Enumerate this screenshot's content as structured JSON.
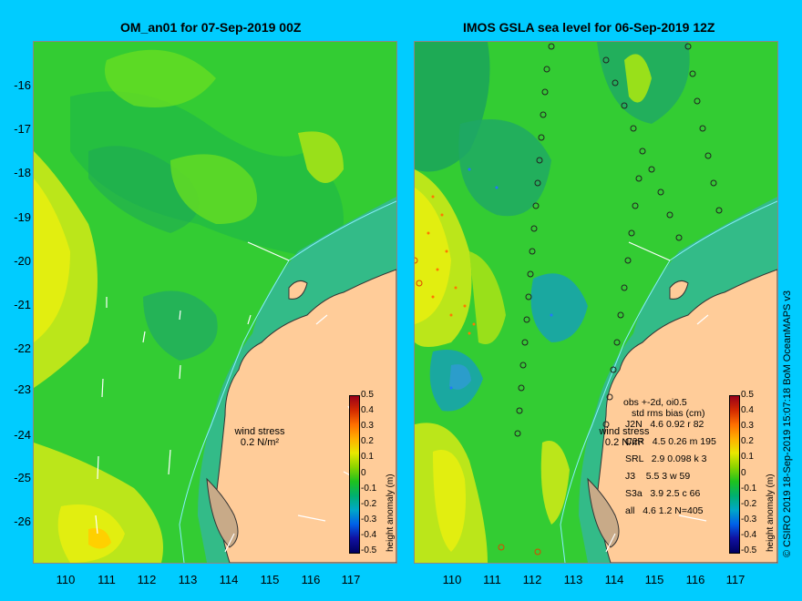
{
  "left_panel": {
    "title": "OM_an01 for 07-Sep-2019 00Z",
    "wind_label": "wind stress",
    "wind_value": "0.2 N/m²"
  },
  "right_panel": {
    "title": "IMOS GSLA sea level  for 06-Sep-2019 12Z",
    "wind_label": "wind stress",
    "wind_value": "0.2 N/m²",
    "stats_header": "obs +-2d, oi0.5",
    "stats_header2": "std rms bias (cm)",
    "stats_rows": [
      "J2N   4.6 0.92 r 82",
      "C2R   4.5 0.26 m 195",
      "SRL   2.9 0.098 k 3",
      "J3    5.5 3 w 59",
      "S3a   3.9 2.5 c 66",
      "all   4.6 1.2 N=405"
    ]
  },
  "y_ticks": [
    "-16",
    "-17",
    "-18",
    "-19",
    "-20",
    "-21",
    "-22",
    "-23",
    "-24",
    "-25",
    "-26"
  ],
  "x_ticks": [
    "110",
    "111",
    "112",
    "113",
    "114",
    "115",
    "116",
    "117"
  ],
  "colorbar": {
    "label": "height anomaly (m)",
    "ticks": [
      "0.5",
      "0.4",
      "0.3",
      "0.2",
      "0.1",
      "0",
      "-0.1",
      "-0.2",
      "-0.3",
      "-0.4",
      "-0.5"
    ],
    "colors": [
      "#99001a",
      "#d42a00",
      "#ff6f00",
      "#ffb000",
      "#e8e800",
      "#8ad400",
      "#1ec21e",
      "#00b070",
      "#00a8c8",
      "#0060e8",
      "#1010a0",
      "#000060"
    ]
  },
  "copyright": "© CSIRO 2019   18-Sep-2019 15:07:18 BoM OceanMAPS v3",
  "colors": {
    "background": "#00ccff",
    "land": "#ffcc99",
    "ocean_green": "#33cc33",
    "shelf": "#33bb88",
    "yellow": "#ccee22"
  }
}
